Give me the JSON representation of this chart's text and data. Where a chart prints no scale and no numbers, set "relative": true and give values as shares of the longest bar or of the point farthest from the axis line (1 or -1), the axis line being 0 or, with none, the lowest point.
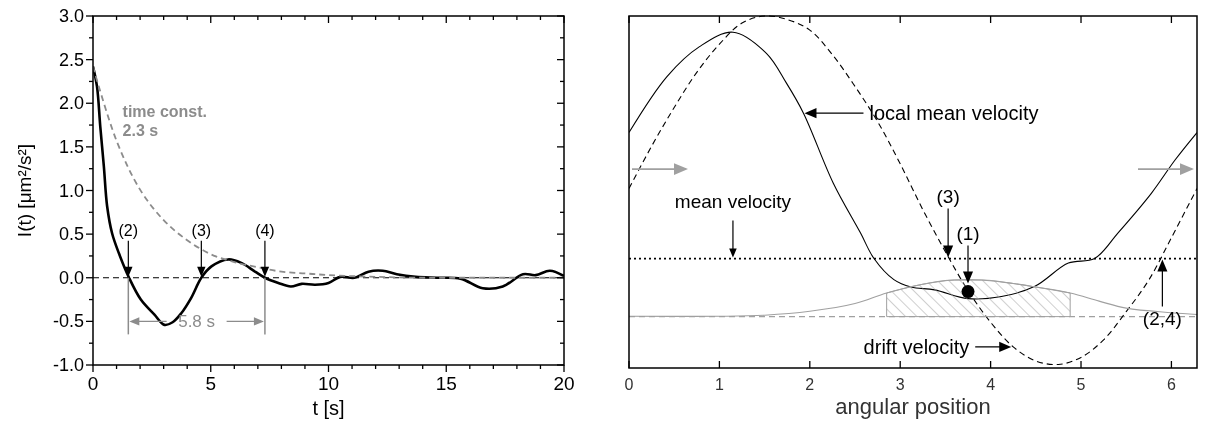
{
  "chart_data": [
    {
      "type": "line",
      "xlabel": "t [s]",
      "ylabel": "I(t) [μm²/s²]",
      "xlim": [
        0,
        20
      ],
      "ylim": [
        -1,
        3
      ],
      "xticks": [
        0,
        {
          "value": 1,
          "label": null
        },
        {
          "value": 2,
          "label": null
        },
        {
          "value": 3,
          "label": null
        },
        {
          "value": 4,
          "label": null
        },
        5,
        {
          "value": 6,
          "label": null
        },
        {
          "value": 7,
          "label": null
        },
        {
          "value": 8,
          "label": null
        },
        {
          "value": 9,
          "label": null
        },
        10,
        {
          "value": 11,
          "label": null
        },
        {
          "value": 12,
          "label": null
        },
        {
          "value": 13,
          "label": null
        },
        {
          "value": 14,
          "label": null
        },
        15,
        {
          "value": 16,
          "label": null
        },
        {
          "value": 17,
          "label": null
        },
        {
          "value": 18,
          "label": null
        },
        {
          "value": 19,
          "label": null
        },
        20
      ],
      "yticks": [
        {
          "value": -1,
          "label": "-1.0"
        },
        {
          "value": -0.75,
          "label": null
        },
        {
          "value": -0.5,
          "label": "-0.5"
        },
        {
          "value": -0.25,
          "label": null
        },
        {
          "value": 0,
          "label": "0.0"
        },
        {
          "value": 0.25,
          "label": null
        },
        {
          "value": 0.5,
          "label": "0.5"
        },
        {
          "value": 0.75,
          "label": null
        },
        {
          "value": 1,
          "label": "1.0"
        },
        {
          "value": 1.25,
          "label": null
        },
        {
          "value": 1.5,
          "label": "1.5"
        },
        {
          "value": 1.75,
          "label": null
        },
        {
          "value": 2,
          "label": "2.0"
        },
        {
          "value": 2.25,
          "label": null
        },
        {
          "value": 2.5,
          "label": "2.5"
        },
        {
          "value": 2.75,
          "label": null
        },
        {
          "value": 3,
          "label": "3.0"
        }
      ],
      "series": [
        {
          "color": "#000000",
          "x": [
            0,
            0.17,
            0.31,
            0.46,
            0.6,
            0.81,
            1.1,
            1.53,
            2.03,
            2.6,
            3.03,
            3.38,
            3.74,
            4.17,
            4.6,
            5.03,
            5.74,
            6.3,
            6.88,
            7.3,
            7.87,
            8.4,
            8.86,
            9.43,
            10.0,
            10.5,
            11.1,
            11.7,
            12.3,
            12.9,
            13.7,
            14.6,
            15.6,
            16.55,
            17.4,
            18.26,
            18.8,
            19.4,
            20
          ],
          "values": [
            2.42,
            2.19,
            1.73,
            1.28,
            0.82,
            0.51,
            0.28,
            0,
            -0.25,
            -0.42,
            -0.54,
            -0.51,
            -0.41,
            -0.23,
            0,
            0.13,
            0.21,
            0.17,
            0.07,
            0,
            -0.06,
            -0.1,
            -0.07,
            -0.08,
            -0.06,
            0.01,
            0,
            0.07,
            0.08,
            0.04,
            0.01,
            0,
            -0.01,
            -0.12,
            -0.1,
            0.04,
            0.03,
            0.08,
            0.02
          ]
        },
        {
          "name": "time const. 2.3 s",
          "color": "#8c8c8c",
          "line_style": "dashed",
          "x": [
            0,
            1,
            2,
            3,
            4,
            5,
            6,
            7,
            8,
            9,
            10,
            12,
            14,
            16,
            18,
            20
          ],
          "values": [
            2.42,
            1.57,
            1.01,
            0.66,
            0.43,
            0.27,
            0.18,
            0.12,
            0.07,
            0.05,
            0.03,
            0.01,
            0,
            0,
            0,
            0
          ]
        }
      ],
      "ref_lines": [
        {
          "axis": "y",
          "value": 0,
          "color": "#000000",
          "line_style": "dashed"
        }
      ],
      "annotations": [
        {
          "text": "(2)",
          "x": 1.5,
          "y": 0
        },
        {
          "text": "(3)",
          "x": 4.6,
          "y": 0
        },
        {
          "text": "(4)",
          "x": 7.3,
          "y": 0
        },
        "5.8 s"
      ]
    },
    {
      "type": "line",
      "relative": true,
      "xlabel": "angular position",
      "xlim": [
        0,
        6.283
      ],
      "xticks": [
        0,
        1,
        2,
        3,
        4,
        5,
        6
      ],
      "series": [
        {
          "name": "local mean velocity",
          "color": "#000000",
          "x": [
            0,
            0.42,
            0.78,
            1.15,
            1.52,
            1.74,
            1.93,
            2.26,
            2.56,
            2.71,
            2.93,
            3.12,
            3.38,
            3.75,
            4.12,
            4.49,
            4.86,
            5.15,
            5.41,
            5.78,
            6.04,
            6.283
          ],
          "values": [
            0.669,
            0.828,
            0.913,
            0.954,
            0.894,
            0.81,
            0.724,
            0.525,
            0.384,
            0.311,
            0.251,
            0.23,
            0.222,
            0.197,
            0.203,
            0.232,
            0.298,
            0.311,
            0.384,
            0.497,
            0.591,
            0.669
          ]
        },
        {
          "name": "drift velocity",
          "color": "#000000",
          "line_style": "dashed",
          "x": [
            0,
            0.25,
            0.5,
            0.75,
            1,
            1.25,
            1.5,
            1.75,
            2,
            2.25,
            2.5,
            2.75,
            3,
            3.25,
            3.5,
            3.75,
            4,
            4.25,
            4.5,
            4.75,
            5,
            5.25,
            5.5,
            5.75,
            6,
            6.283
          ],
          "values": [
            0.51,
            0.63,
            0.74,
            0.84,
            0.92,
            0.98,
            1.0,
            0.99,
            0.96,
            0.89,
            0.8,
            0.7,
            0.58,
            0.45,
            0.33,
            0.22,
            0.13,
            0.06,
            0.02,
            0.01,
            0.03,
            0.08,
            0.16,
            0.25,
            0.37,
            0.51
          ]
        },
        {
          "color": "#a0a0a0",
          "x": [
            0,
            1,
            1.5,
            2,
            2.5,
            2.85,
            3.25,
            3.6,
            3.9,
            4.25,
            4.5,
            4.88,
            5.2,
            5.5,
            6,
            6.283
          ],
          "values": [
            0.147,
            0.147,
            0.15,
            0.161,
            0.183,
            0.213,
            0.238,
            0.25,
            0.25,
            0.24,
            0.23,
            0.213,
            0.19,
            0.17,
            0.157,
            0.152
          ]
        },
        {
          "type": "area",
          "color": "#a0a0a0",
          "x": [
            2.85,
            3.25,
            3.6,
            3.9,
            4.25,
            4.5,
            4.88
          ],
          "values": [
            0.213,
            0.238,
            0.25,
            0.25,
            0.24,
            0.23,
            0.213
          ]
        },
        {
          "type": "scatter",
          "color": "#000000",
          "marker": "circle",
          "x": [
            3.75
          ],
          "values": [
            0.217
          ]
        }
      ],
      "ref_lines": [
        {
          "axis": "y",
          "value": 0.311,
          "label": "mean velocity",
          "color": "#000000",
          "line_style": "dotted"
        },
        {
          "axis": "y",
          "value": 0.146,
          "color": "#a0a0a0",
          "line_style": "dashed"
        }
      ],
      "annotations": [
        {
          "text": "(3)",
          "x": 3.53,
          "y": 0.311
        },
        {
          "text": "(1)",
          "x": 3.75,
          "y": 0.217
        },
        {
          "text": "(2,4)",
          "x": 5.9,
          "y": 0.311
        }
      ]
    }
  ]
}
